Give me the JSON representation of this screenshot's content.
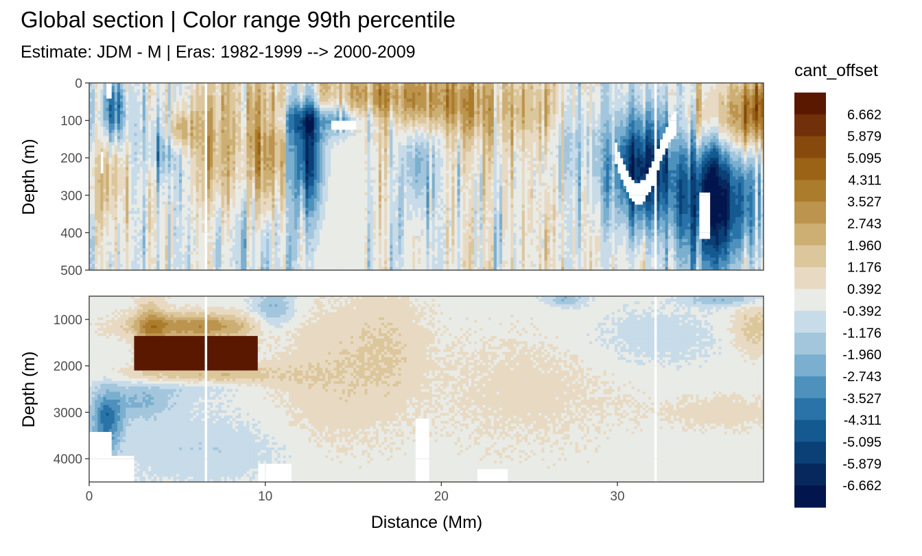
{
  "chart_data": {
    "type": "heatmap",
    "title": "Global section | Color range 99th percentile",
    "subtitle": "Estimate: JDM - M | Eras: 1982-1999 --> 2000-2009",
    "xlabel": "Distance (Mm)",
    "ylabel": "Depth (m)",
    "xlim": [
      0,
      38.3
    ],
    "xticks": [
      0,
      10,
      20,
      30
    ],
    "panels": [
      {
        "name": "upper",
        "ylim": [
          0,
          500
        ],
        "yticks": [
          0,
          100,
          200,
          300,
          400,
          500
        ],
        "reversed": true
      },
      {
        "name": "lower",
        "ylim": [
          500,
          4500
        ],
        "yticks": [
          1000,
          2000,
          3000,
          4000
        ],
        "reversed": true
      }
    ],
    "legend": {
      "title": "cant_offset",
      "position": "right",
      "labels": [
        "6.662",
        "5.879",
        "5.095",
        "4.311",
        "3.527",
        "2.743",
        "1.960",
        "1.176",
        "0.392",
        "-0.392",
        "-1.176",
        "-1.960",
        "-2.743",
        "-3.527",
        "-4.311",
        "-5.095",
        "-5.879",
        "-6.662"
      ],
      "colors": [
        "#5a1800",
        "#72300a",
        "#874a0c",
        "#9a6316",
        "#ab7c2c",
        "#bc944e",
        "#cdaf74",
        "#dcc69b",
        "#e8dac2",
        "#e9ebe7",
        "#c7dbe9",
        "#a3c6dd",
        "#7aafcf",
        "#4d91bc",
        "#2973a8",
        "#145990",
        "#0a4076",
        "#06285d",
        "#02154c"
      ]
    },
    "grid": true,
    "gaps_x": [
      6.6,
      32.1
    ]
  }
}
